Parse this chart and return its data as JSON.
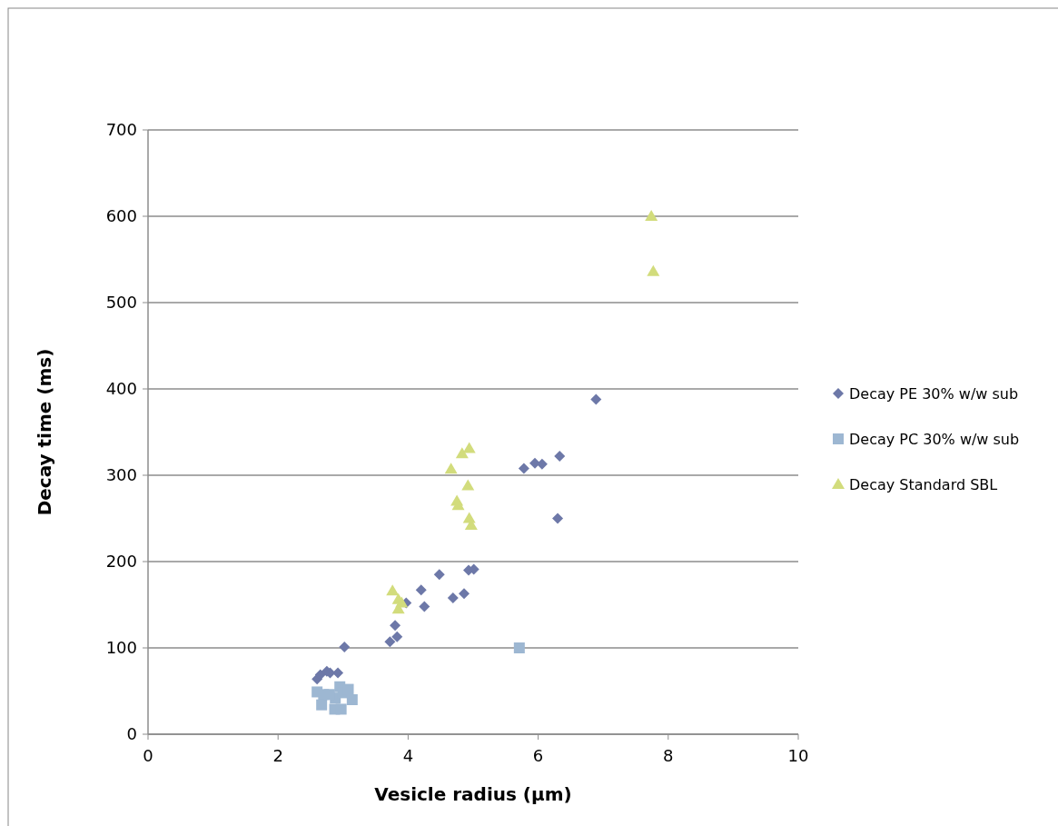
{
  "chart_data": {
    "type": "scatter",
    "xlabel": "Vesicle radius (µm)",
    "ylabel": "Decay time (ms)",
    "xlim": [
      0,
      10
    ],
    "xticks": [
      0,
      2,
      4,
      6,
      8,
      10
    ],
    "ylim": [
      0,
      700
    ],
    "yticks": [
      0,
      100,
      200,
      300,
      400,
      500,
      600,
      700
    ],
    "grid": "y",
    "legend": "right",
    "series": [
      {
        "name": "Decay PE 30% w/w sub",
        "color": "#6d78a8",
        "marker": "diamond",
        "x": [
          2.6,
          2.65,
          2.75,
          2.8,
          2.92,
          3.02,
          3.72,
          3.83,
          3.8,
          3.97,
          4.2,
          4.25,
          4.48,
          4.69,
          4.86,
          4.93,
          5.01,
          5.78,
          5.95,
          6.06,
          6.33,
          6.3,
          6.89
        ],
        "values": [
          64,
          69,
          73,
          71,
          71,
          101,
          107,
          113,
          126,
          152,
          167,
          148,
          185,
          158,
          163,
          190,
          191,
          308,
          314,
          313,
          322,
          250,
          388
        ]
      },
      {
        "name": "Decay PC 30% w/w sub",
        "color": "#9db7d2",
        "marker": "square",
        "x": [
          2.6,
          2.7,
          2.67,
          2.88,
          2.87,
          2.95,
          2.97,
          3.0,
          3.08,
          3.14,
          2.79,
          5.71
        ],
        "values": [
          49,
          46,
          34,
          42,
          29,
          55,
          29,
          48,
          52,
          40,
          46,
          100
        ]
      },
      {
        "name": "Decay Standard SBL",
        "color": "#d2dc7c",
        "marker": "triangle",
        "x": [
          3.76,
          3.85,
          3.85,
          3.9,
          4.66,
          4.83,
          4.94,
          4.75,
          4.77,
          4.92,
          4.94,
          4.97,
          7.74,
          7.77
        ],
        "values": [
          166,
          156,
          145,
          152,
          307,
          325,
          331,
          270,
          265,
          288,
          250,
          242,
          600,
          536
        ]
      }
    ]
  }
}
